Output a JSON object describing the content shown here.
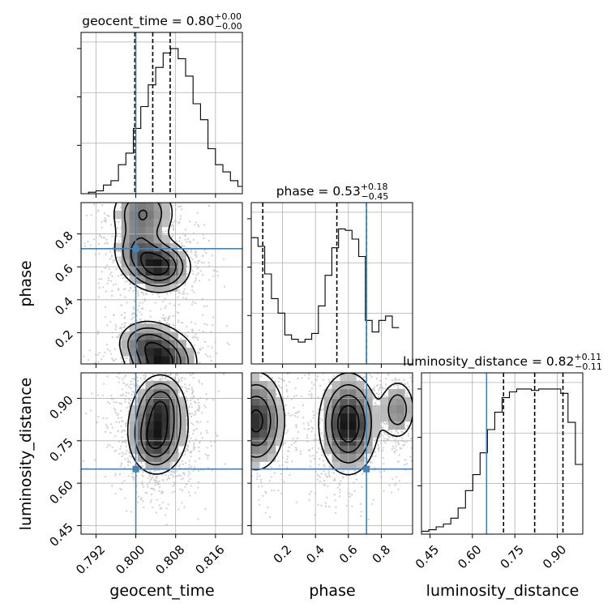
{
  "chart_data": {
    "type": "corner",
    "parameters": [
      "geocent_time",
      "phase",
      "luminosity_distance"
    ],
    "truths": {
      "geocent_time": 0.8,
      "phase": 0.71,
      "luminosity_distance": 0.65
    },
    "truth_color": "#4682b4",
    "titles": {
      "geocent_time": {
        "main": "geocent_time = 0.80",
        "sup": "+0.00",
        "sub": "−0.00"
      },
      "phase": {
        "main": "phase = 0.53",
        "sup": "+0.18",
        "sub": "−0.45"
      },
      "luminosity_distance": {
        "main": "luminosity_distance = 0.82",
        "sup": "+0.11",
        "sub": "−0.11"
      }
    },
    "axes": {
      "geocent_time": {
        "range": [
          0.789,
          0.8214
        ],
        "ticks": [
          "0.792",
          "0.800",
          "0.808",
          "0.816"
        ],
        "tick_values": [
          0.792,
          0.8,
          0.808,
          0.816
        ]
      },
      "phase": {
        "range": [
          0.01,
          0.99
        ],
        "ticks": [
          "0.2",
          "0.4",
          "0.6",
          "0.8"
        ],
        "tick_values": [
          0.2,
          0.4,
          0.6,
          0.8
        ]
      },
      "luminosity_distance": {
        "range": [
          0.42,
          0.99
        ],
        "ticks": [
          "0.45",
          "0.60",
          "0.75",
          "0.90"
        ],
        "tick_values": [
          0.45,
          0.6,
          0.75,
          0.9
        ]
      }
    },
    "quantile_lines": {
      "geocent_time": [
        0.7998,
        0.8034,
        0.8069
      ],
      "phase": [
        0.08,
        0.53,
        0.71
      ],
      "luminosity_distance": [
        0.71,
        0.82,
        0.92
      ]
    },
    "histograms": {
      "geocent_time": {
        "edges_start": 0.789,
        "bin_width": 0.0015,
        "counts": [
          0,
          0.01,
          0.02,
          0.06,
          0.09,
          0.2,
          0.28,
          0.45,
          0.6,
          0.75,
          0.87,
          0.97,
          1.0,
          0.93,
          0.81,
          0.62,
          0.51,
          0.31,
          0.2,
          0.15,
          0.09,
          0.05
        ]
      },
      "phase": {
        "edges_start": 0.01,
        "bin_width": 0.0408,
        "counts": [
          0.87,
          0.81,
          0.62,
          0.45,
          0.35,
          0.2,
          0.17,
          0.15,
          0.17,
          0.21,
          0.4,
          0.61,
          0.8,
          0.93,
          0.92,
          0.86,
          0.74,
          0.3,
          0.22,
          0.3,
          0.33,
          0.25
        ]
      },
      "luminosity_distance": {
        "edges_start": 0.42,
        "bin_width": 0.0259,
        "counts": [
          0.02,
          0.03,
          0.05,
          0.07,
          0.11,
          0.18,
          0.3,
          0.41,
          0.56,
          0.72,
          0.84,
          0.94,
          0.98,
          1.0,
          1.0,
          0.99,
          1.0,
          1.0,
          1.0,
          0.97,
          0.77,
          0.48
        ]
      }
    },
    "kde_blobs": {
      "phase_vs_geocent_time": [
        {
          "x": 0.8015,
          "y": 0.93,
          "sx": 0.0035,
          "sy": 0.1,
          "w": 0.6
        },
        {
          "x": 0.8048,
          "y": 0.6,
          "sx": 0.0032,
          "sy": 0.08,
          "w": 1.0
        },
        {
          "x": 0.8005,
          "y": 0.7,
          "sx": 0.0028,
          "sy": 0.09,
          "w": 0.55
        },
        {
          "x": 0.8052,
          "y": 0.02,
          "sx": 0.0036,
          "sy": 0.1,
          "w": 1.05
        },
        {
          "x": 0.8018,
          "y": 0.15,
          "sx": 0.003,
          "sy": 0.07,
          "w": 0.5
        }
      ],
      "luminosity_distance_vs_geocent_time": [
        {
          "x": 0.8045,
          "y": 0.8,
          "sx": 0.0032,
          "sy": 0.085,
          "w": 1.0
        },
        {
          "x": 0.8052,
          "y": 0.89,
          "sx": 0.0022,
          "sy": 0.05,
          "w": 0.45
        },
        {
          "x": 0.8035,
          "y": 0.74,
          "sx": 0.0022,
          "sy": 0.05,
          "w": 0.4
        }
      ],
      "luminosity_distance_vs_phase": [
        {
          "x": 0.04,
          "y": 0.82,
          "sx": 0.09,
          "sy": 0.09,
          "w": 0.85
        },
        {
          "x": 0.6,
          "y": 0.81,
          "sx": 0.09,
          "sy": 0.09,
          "w": 1.0
        },
        {
          "x": 0.9,
          "y": 0.86,
          "sx": 0.06,
          "sy": 0.06,
          "w": 0.45
        }
      ]
    },
    "grid": true
  }
}
